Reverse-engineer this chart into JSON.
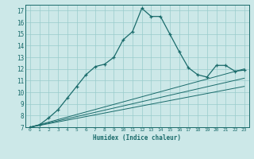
{
  "xlabel": "Humidex (Indice chaleur)",
  "bg_color": "#cce8e8",
  "grid_color": "#99cccc",
  "line_color": "#1a6b6b",
  "xlim": [
    -0.5,
    23.5
  ],
  "ylim": [
    7,
    17.5
  ],
  "xticks": [
    0,
    1,
    2,
    3,
    4,
    5,
    6,
    7,
    8,
    9,
    10,
    11,
    12,
    13,
    14,
    15,
    16,
    17,
    18,
    19,
    20,
    21,
    22,
    23
  ],
  "yticks": [
    7,
    8,
    9,
    10,
    11,
    12,
    13,
    14,
    15,
    16,
    17
  ],
  "linear1": {
    "x": [
      0,
      23
    ],
    "y": [
      7.0,
      10.5
    ]
  },
  "linear2": {
    "x": [
      0,
      23
    ],
    "y": [
      7.0,
      11.2
    ]
  },
  "linear3": {
    "x": [
      0,
      23
    ],
    "y": [
      7.0,
      12.0
    ]
  },
  "main_curve": {
    "x": [
      0,
      1,
      2,
      3,
      4,
      5,
      6,
      7,
      8,
      9,
      10,
      11,
      12,
      13,
      14,
      15,
      16,
      17,
      18,
      19,
      20,
      21,
      22,
      23
    ],
    "y": [
      7.0,
      7.2,
      7.8,
      8.5,
      9.5,
      10.5,
      11.5,
      12.2,
      12.4,
      13.0,
      14.5,
      15.2,
      17.2,
      16.5,
      16.5,
      15.0,
      13.5,
      12.1,
      11.5,
      11.3,
      12.3,
      12.3,
      11.8,
      11.9
    ]
  }
}
